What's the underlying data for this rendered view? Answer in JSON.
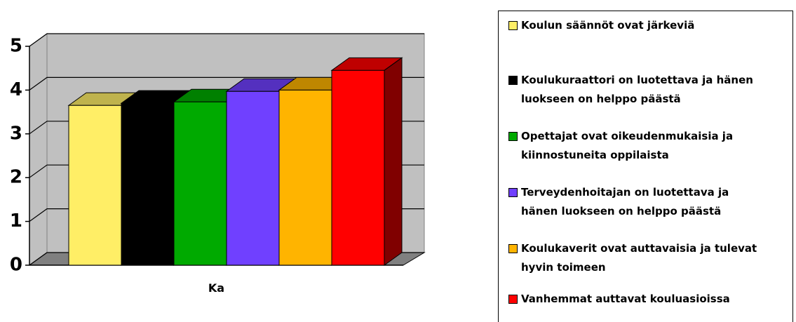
{
  "chart_data": {
    "type": "bar3d",
    "categories": [
      "Ka"
    ],
    "series": [
      {
        "name": "Koulun säännöt ovat järkeviä",
        "color": "#ffee66",
        "values": [
          3.65
        ]
      },
      {
        "name": "Koulukuraattori on luotettava ja hänen luokseen on helppo päästä",
        "color": "#000000",
        "values": [
          3.7
        ]
      },
      {
        "name": "Opettajat ovat oikeudenmukaisia ja kiinnostuneita oppilaista",
        "color": "#00aa00",
        "values": [
          3.73
        ]
      },
      {
        "name": "Terveydenhoitajan on luotettava ja hänen luokseen on helppo päästä",
        "color": "#7040ff",
        "values": [
          3.97
        ]
      },
      {
        "name": "Koulukaverit ovat auttavaisia ja tulevat hyvin toimeen",
        "color": "#ffb400",
        "values": [
          4.0
        ]
      },
      {
        "name": "Vanhemmat auttavat kouluasioissa",
        "color": "#ff0000",
        "values": [
          4.45
        ]
      }
    ],
    "ylim": [
      0,
      5
    ],
    "yticks": [
      0,
      1,
      2,
      3,
      4,
      5
    ],
    "grid": true,
    "legend": "right"
  }
}
